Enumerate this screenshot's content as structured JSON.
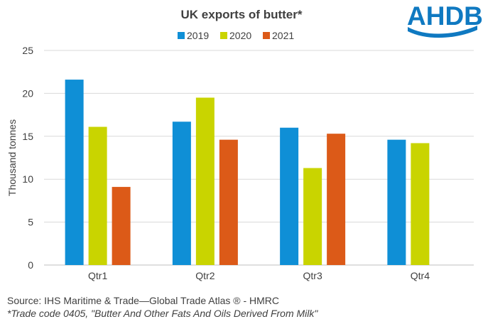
{
  "logo": {
    "text": "AHDB"
  },
  "colors": {
    "gridline": "#d9d9d9",
    "axis": "#bfbfbf",
    "logo": "#0f79c1"
  },
  "chart_data": {
    "type": "bar",
    "title": "UK exports of butter*",
    "xlabel": "",
    "ylabel": "Thousand tonnes",
    "categories": [
      "Qtr1",
      "Qtr2",
      "Qtr3",
      "Qtr4"
    ],
    "series": [
      {
        "name": "2019",
        "color": "#0f8fd6",
        "values": [
          21.6,
          16.7,
          16.0,
          14.6
        ]
      },
      {
        "name": "2020",
        "color": "#c9d400",
        "values": [
          16.1,
          19.5,
          11.3,
          14.2
        ]
      },
      {
        "name": "2021",
        "color": "#dc5a18",
        "values": [
          9.1,
          14.6,
          15.3,
          null
        ]
      }
    ],
    "ylim": [
      0,
      25
    ],
    "yticks": [
      0,
      5,
      10,
      15,
      20,
      25
    ],
    "grid": true,
    "legend_position": "top"
  },
  "footer": {
    "source": "Source: IHS Maritime & Trade—Global Trade Atlas ®  - HMRC",
    "note": "*Trade code 0405, \"Butter And Other Fats And Oils Derived From Milk\""
  }
}
